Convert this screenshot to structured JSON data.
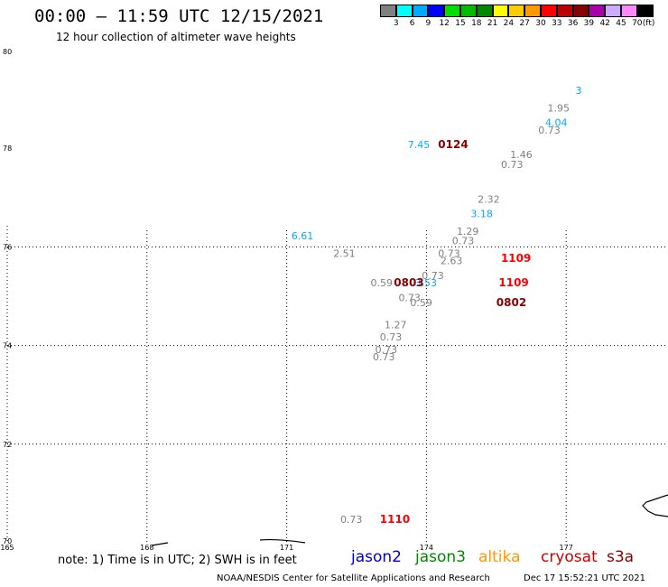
{
  "header": {
    "title": "00:00 – 11:59 UTC 12/15/2021",
    "subtitle": "12 hour collection of altimeter wave heights"
  },
  "legend": {
    "colors": [
      "#808080",
      "#00ffff",
      "#00aaff",
      "#0000ff",
      "#00dd00",
      "#00bb00",
      "#008800",
      "#ffff00",
      "#ffcc00",
      "#ff9900",
      "#ff0000",
      "#bb0000",
      "#880000",
      "#aa00aa",
      "#ccaaff",
      "#ff88ff",
      "#000000"
    ],
    "labels": [
      "3",
      "6",
      "9",
      "12",
      "15",
      "18",
      "21",
      "24",
      "27",
      "30",
      "33",
      "36",
      "39",
      "42",
      "45",
      "70"
    ],
    "unit": "(ft)"
  },
  "axes": {
    "lat_labels": [
      "80",
      "78",
      "76",
      "74",
      "72",
      "70"
    ],
    "lon_labels": [
      "165",
      "168",
      "171",
      "174",
      "177"
    ]
  },
  "measurements": [
    {
      "text": "3",
      "color": "#00aaff",
      "lon": 177.2,
      "lat": 79.1
    },
    {
      "text": "1.95",
      "color": "#808080",
      "lon": 176.6,
      "lat": 78.75
    },
    {
      "text": "4.04",
      "color": "#00aaff",
      "lon": 176.55,
      "lat": 78.45
    },
    {
      "text": "0.73",
      "color": "#808080",
      "lon": 176.4,
      "lat": 78.3
    },
    {
      "text": "7.45",
      "color": "#00aaff",
      "lon": 173.6,
      "lat": 78.0
    },
    {
      "text": "1.46",
      "color": "#808080",
      "lon": 175.8,
      "lat": 77.8
    },
    {
      "text": "0.73",
      "color": "#808080",
      "lon": 175.6,
      "lat": 77.6
    },
    {
      "text": "2.32",
      "color": "#808080",
      "lon": 175.1,
      "lat": 76.9
    },
    {
      "text": "3.18",
      "color": "#00aaff",
      "lon": 174.95,
      "lat": 76.6
    },
    {
      "text": "6.61",
      "color": "#00aaff",
      "lon": 171.1,
      "lat": 76.15
    },
    {
      "text": "1.29",
      "color": "#808080",
      "lon": 174.65,
      "lat": 76.25
    },
    {
      "text": "0.73",
      "color": "#808080",
      "lon": 174.55,
      "lat": 76.05
    },
    {
      "text": "0.73",
      "color": "#808080",
      "lon": 174.25,
      "lat": 75.8
    },
    {
      "text": "2.63",
      "color": "#808080",
      "lon": 174.3,
      "lat": 75.65
    },
    {
      "text": "2.51",
      "color": "#808080",
      "lon": 172.0,
      "lat": 75.8
    },
    {
      "text": "0.73",
      "color": "#808080",
      "lon": 173.9,
      "lat": 75.35
    },
    {
      "text": "3.53",
      "color": "#00aaff",
      "lon": 173.75,
      "lat": 75.2
    },
    {
      "text": "0.59",
      "color": "#808080",
      "lon": 172.8,
      "lat": 75.2
    },
    {
      "text": "0.73",
      "color": "#808080",
      "lon": 173.4,
      "lat": 74.9
    },
    {
      "text": "0.59",
      "color": "#808080",
      "lon": 173.65,
      "lat": 74.8
    },
    {
      "text": "1.27",
      "color": "#808080",
      "lon": 173.1,
      "lat": 74.35
    },
    {
      "text": "0.73",
      "color": "#808080",
      "lon": 173.0,
      "lat": 74.1
    },
    {
      "text": "0.73",
      "color": "#808080",
      "lon": 172.9,
      "lat": 73.85
    },
    {
      "text": "0.73",
      "color": "#808080",
      "lon": 172.85,
      "lat": 73.7
    },
    {
      "text": "0.73",
      "color": "#808080",
      "lon": 172.15,
      "lat": 70.4
    }
  ],
  "passes": [
    {
      "text": "0124",
      "color": "#880000",
      "lon": 174.25,
      "lat": 78.0
    },
    {
      "text": "1109",
      "color": "#ff0000",
      "lon": 175.6,
      "lat": 75.7
    },
    {
      "text": "0803",
      "color": "#880000",
      "lon": 173.3,
      "lat": 75.2
    },
    {
      "text": "1109",
      "color": "#ff0000",
      "lon": 175.55,
      "lat": 75.2
    },
    {
      "text": "0802",
      "color": "#880000",
      "lon": 175.5,
      "lat": 74.8
    },
    {
      "text": "1110",
      "color": "#ff0000",
      "lon": 173.0,
      "lat": 70.4
    }
  ],
  "footer": {
    "note": "note: 1) Time is in UTC; 2) SWH is in feet",
    "missions": [
      {
        "name": "jason2",
        "color": "#0000cc"
      },
      {
        "name": "jason3",
        "color": "#008800"
      },
      {
        "name": "altika",
        "color": "#ff9900"
      },
      {
        "name": "cryosat",
        "color": "#cc0000"
      },
      {
        "name": "s3a",
        "color": "#880000"
      }
    ],
    "credit": "NOAA/NESDIS Center for Satellite Applications and Research",
    "generated": "Dec 17 15:52:21 UTC 2021"
  }
}
